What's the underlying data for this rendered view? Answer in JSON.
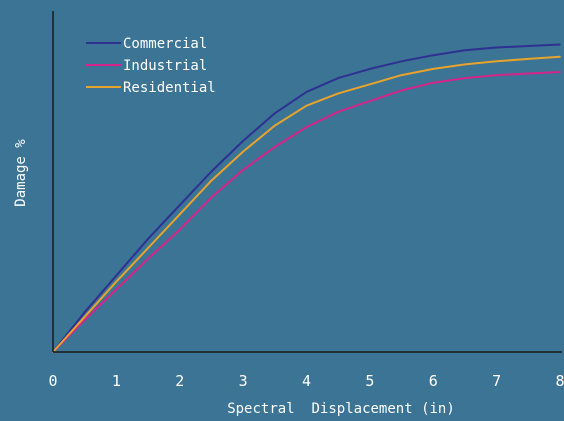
{
  "chart_data": {
    "type": "line",
    "title": "",
    "xlabel": "Spectral  Displacement (in)",
    "ylabel": "Damage %",
    "xlim": [
      0,
      8
    ],
    "ylim": [
      0,
      100
    ],
    "xticks": [
      "0",
      "1",
      "2",
      "3",
      "4",
      "5",
      "6",
      "7",
      "8"
    ],
    "grid": false,
    "legend_position": "top-left",
    "colors": {
      "background": "#3b7494",
      "axis": "#1a1a1a",
      "text": "#ffffff"
    },
    "series": [
      {
        "name": "Commercial",
        "color": "#2e3192",
        "x": [
          0,
          0.5,
          1,
          1.5,
          2,
          2.5,
          3,
          3.5,
          4,
          4.5,
          5,
          5.5,
          6,
          6.5,
          7,
          7.5,
          8
        ],
        "y": [
          0,
          13,
          25,
          37,
          48,
          59,
          69,
          78,
          85,
          89.5,
          92.5,
          95,
          97,
          98.6,
          99.5,
          100,
          100.5
        ]
      },
      {
        "name": "Industrial",
        "color": "#d6258a",
        "x": [
          0,
          0.5,
          1,
          1.5,
          2,
          2.5,
          3,
          3.5,
          4,
          4.5,
          5,
          5.5,
          6,
          6.5,
          7,
          7.5,
          8
        ],
        "y": [
          0,
          10.5,
          20.5,
          30.5,
          40,
          50.5,
          59.5,
          67,
          73.5,
          78.5,
          82,
          85.5,
          88,
          89.5,
          90.5,
          91,
          91.5
        ]
      },
      {
        "name": "Residential",
        "color": "#e8a32c",
        "x": [
          0,
          0.5,
          1,
          1.5,
          2,
          2.5,
          3,
          3.5,
          4,
          4.5,
          5,
          5.5,
          6,
          6.5,
          7,
          7.5,
          8
        ],
        "y": [
          0,
          11.5,
          23,
          34,
          45,
          56,
          65.5,
          74,
          80.5,
          84.5,
          87.5,
          90.5,
          92.5,
          94,
          95,
          95.8,
          96.5
        ]
      }
    ]
  }
}
